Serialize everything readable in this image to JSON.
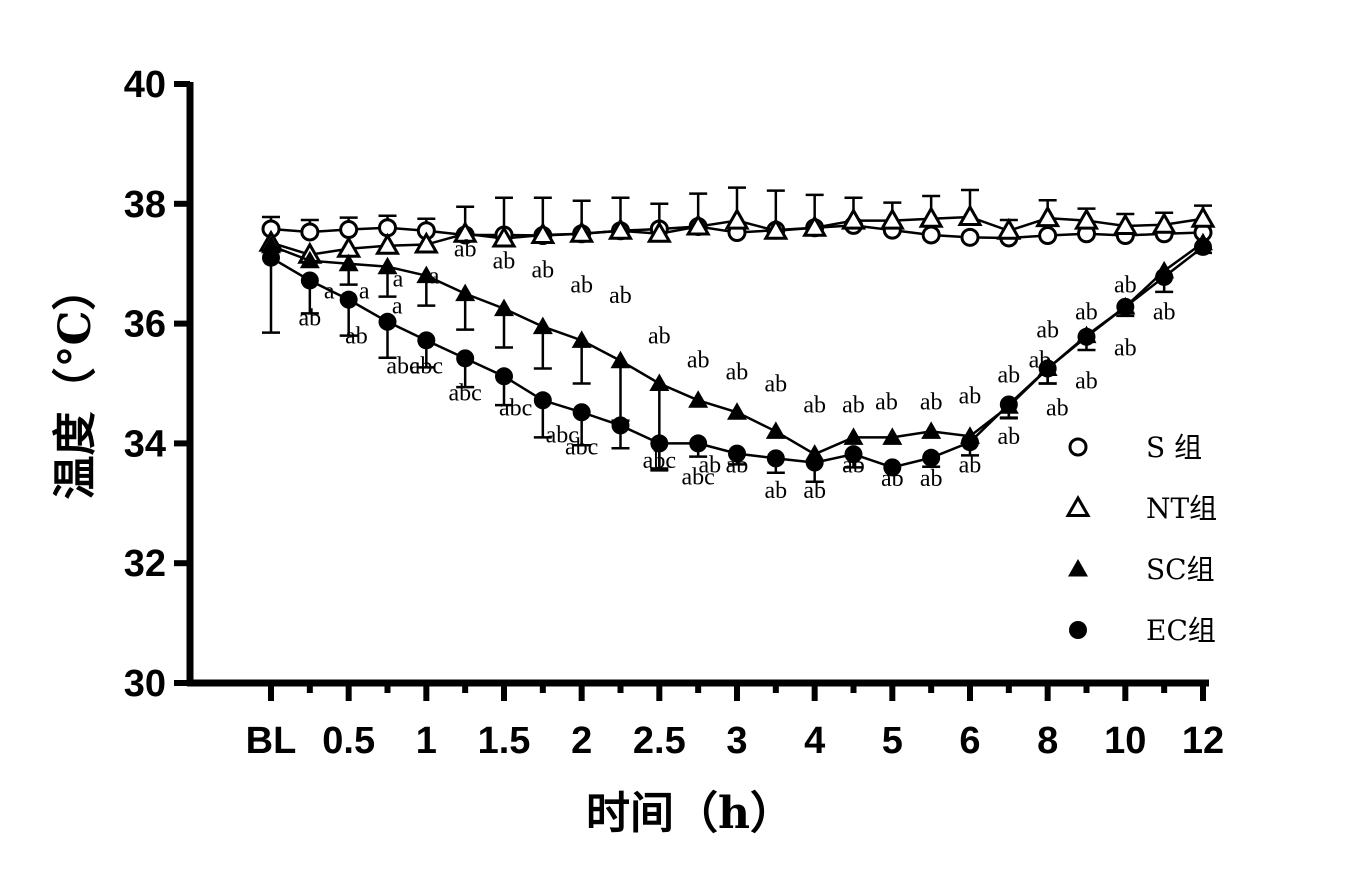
{
  "chart_data": {
    "type": "line",
    "title": "",
    "xlabel": "时间（h）",
    "ylabel": "温度（°C）",
    "ylim": [
      30,
      40
    ],
    "yticks": [
      "30",
      "32",
      "34",
      "36",
      "38",
      "40"
    ],
    "x_tick_labels": [
      "BL",
      "0.5",
      "1",
      "1.5",
      "2",
      "2.5",
      "3",
      "4",
      "5",
      "6",
      "8",
      "10",
      "12"
    ],
    "x_tick_index": [
      0,
      2,
      4,
      6,
      8,
      10,
      12,
      14,
      16,
      18,
      20,
      22,
      24
    ],
    "n_points": 25,
    "legend_position": "right",
    "series": [
      {
        "name": "S 组",
        "marker": "circle-open",
        "values": [
          37.58,
          37.53,
          37.57,
          37.6,
          37.55,
          37.48,
          37.48,
          37.47,
          37.5,
          37.55,
          37.58,
          37.62,
          37.52,
          37.56,
          37.6,
          37.64,
          37.56,
          37.48,
          37.44,
          37.43,
          37.47,
          37.5,
          37.47,
          37.5,
          37.52
        ],
        "err": [
          0.2,
          0.2,
          0.2,
          0.2,
          0.2,
          0.0,
          0.0,
          0.0,
          0.0,
          0.0,
          0.0,
          0.0,
          0.0,
          0.0,
          0.0,
          0.0,
          0.0,
          0.0,
          0.0,
          0.0,
          0.0,
          0.0,
          0.0,
          0.0,
          0.0
        ]
      },
      {
        "name": "NT组",
        "marker": "triangle-open",
        "values": [
          37.35,
          37.15,
          37.25,
          37.3,
          37.32,
          37.5,
          37.42,
          37.48,
          37.5,
          37.55,
          37.5,
          37.62,
          37.72,
          37.55,
          37.6,
          37.72,
          37.72,
          37.75,
          37.78,
          37.55,
          37.76,
          37.72,
          37.63,
          37.65,
          37.75
        ],
        "err": [
          0.0,
          0.0,
          0.0,
          0.0,
          0.0,
          0.45,
          0.68,
          0.62,
          0.55,
          0.55,
          0.5,
          0.55,
          0.55,
          0.67,
          0.55,
          0.38,
          0.3,
          0.38,
          0.45,
          0.18,
          0.3,
          0.2,
          0.2,
          0.2,
          0.22
        ]
      },
      {
        "name": "SC组",
        "marker": "triangle-filled",
        "values": [
          37.3,
          37.05,
          37.0,
          36.95,
          36.8,
          36.5,
          36.25,
          35.95,
          35.72,
          35.38,
          35.0,
          34.72,
          34.52,
          34.2,
          33.82,
          34.1,
          34.1,
          34.2,
          34.12,
          34.62,
          35.25,
          35.8,
          36.28,
          36.88,
          37.35
        ],
        "err": [
          0.0,
          0.0,
          0.35,
          0.5,
          0.5,
          0.6,
          0.65,
          0.7,
          0.72,
          1.0,
          1.45,
          0.0,
          0.0,
          0.0,
          0.0,
          0.0,
          0.0,
          0.0,
          0.0,
          0.2,
          0.25,
          0.1,
          0.1,
          0.1,
          0.1
        ]
      },
      {
        "name": "EC组",
        "marker": "circle-filled",
        "values": [
          37.1,
          36.72,
          36.4,
          36.03,
          35.72,
          35.42,
          35.12,
          34.72,
          34.52,
          34.3,
          34.0,
          34.0,
          33.83,
          33.75,
          33.68,
          33.82,
          33.6,
          33.76,
          34.02,
          34.65,
          35.25,
          35.78,
          36.28,
          36.78,
          37.28
        ],
        "err": [
          1.25,
          0.55,
          0.6,
          0.6,
          0.45,
          0.48,
          0.48,
          0.62,
          0.55,
          0.38,
          0.42,
          0.22,
          0.18,
          0.24,
          0.32,
          0.22,
          0.0,
          0.15,
          0.22,
          0.22,
          0.25,
          0.22,
          0.15,
          0.25,
          0.1
        ]
      }
    ],
    "annotations": [
      {
        "text": "a",
        "x": 1.5,
        "y": 36.55
      },
      {
        "text": "a",
        "x": 2.4,
        "y": 36.55
      },
      {
        "text": "a",
        "x": 3.25,
        "y": 36.3
      },
      {
        "text": "a",
        "x": 3.27,
        "y": 36.75
      },
      {
        "text": "a",
        "x": 4.2,
        "y": 36.8
      },
      {
        "text": "ab",
        "x": 5.0,
        "y": 37.25
      },
      {
        "text": "ab",
        "x": 6.0,
        "y": 37.05
      },
      {
        "text": "ab",
        "x": 7.0,
        "y": 36.9
      },
      {
        "text": "ab",
        "x": 8.0,
        "y": 36.65
      },
      {
        "text": "ab",
        "x": 9.0,
        "y": 36.48
      },
      {
        "text": "ab",
        "x": 10.0,
        "y": 35.8
      },
      {
        "text": "ab",
        "x": 11.0,
        "y": 35.4
      },
      {
        "text": "ab",
        "x": 12.0,
        "y": 35.2
      },
      {
        "text": "ab",
        "x": 13.0,
        "y": 35.0
      },
      {
        "text": "ab",
        "x": 14.0,
        "y": 34.65
      },
      {
        "text": "ab",
        "x": 15.0,
        "y": 34.65
      },
      {
        "text": "ab",
        "x": 15.85,
        "y": 34.7
      },
      {
        "text": "ab",
        "x": 17.0,
        "y": 34.7
      },
      {
        "text": "ab",
        "x": 18.0,
        "y": 34.8
      },
      {
        "text": "ab",
        "x": 19.0,
        "y": 35.15
      },
      {
        "text": "ab",
        "x": 19.8,
        "y": 35.4
      },
      {
        "text": "ab",
        "x": 20.0,
        "y": 35.9
      },
      {
        "text": "ab",
        "x": 21.0,
        "y": 36.2
      },
      {
        "text": "ab",
        "x": 22.0,
        "y": 36.65
      },
      {
        "text": "ab",
        "x": 1.0,
        "y": 36.1
      },
      {
        "text": "ab",
        "x": 2.2,
        "y": 35.8
      },
      {
        "text": "abc",
        "x": 3.4,
        "y": 35.3
      },
      {
        "text": "abc",
        "x": 4.0,
        "y": 35.3
      },
      {
        "text": "abc",
        "x": 5.0,
        "y": 34.85
      },
      {
        "text": "abc",
        "x": 6.3,
        "y": 34.6
      },
      {
        "text": "abc",
        "x": 7.5,
        "y": 34.15
      },
      {
        "text": "abc",
        "x": 8.0,
        "y": 33.95
      },
      {
        "text": "abc",
        "x": 10.0,
        "y": 33.72
      },
      {
        "text": "abc",
        "x": 11.0,
        "y": 33.45
      },
      {
        "text": "ab",
        "x": 11.3,
        "y": 33.65
      },
      {
        "text": "ab",
        "x": 12.0,
        "y": 33.65
      },
      {
        "text": "ab",
        "x": 13.0,
        "y": 33.22
      },
      {
        "text": "ab",
        "x": 14.0,
        "y": 33.22
      },
      {
        "text": "ab",
        "x": 15.0,
        "y": 33.65
      },
      {
        "text": "ab",
        "x": 16.0,
        "y": 33.42
      },
      {
        "text": "ab",
        "x": 17.0,
        "y": 33.42
      },
      {
        "text": "ab",
        "x": 18.0,
        "y": 33.65
      },
      {
        "text": "ab",
        "x": 19.0,
        "y": 34.12
      },
      {
        "text": "ab",
        "x": 20.25,
        "y": 34.6
      },
      {
        "text": "ab",
        "x": 21.0,
        "y": 35.05
      },
      {
        "text": "ab",
        "x": 22.0,
        "y": 35.6
      },
      {
        "text": "ab",
        "x": 23.0,
        "y": 36.2
      }
    ]
  }
}
